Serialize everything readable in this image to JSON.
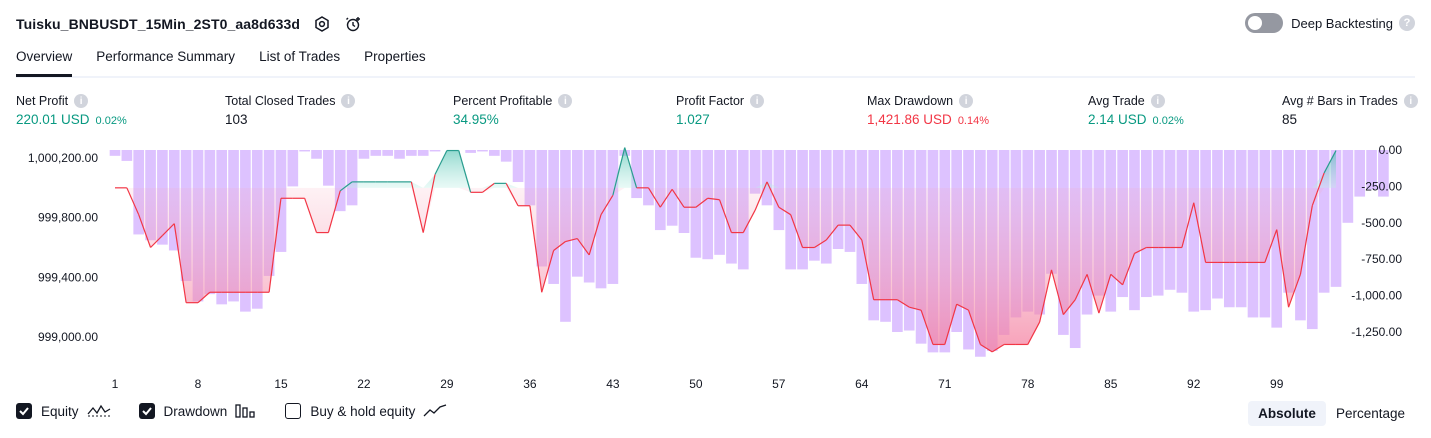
{
  "header": {
    "title": "Tuisku_BNBUSDT_15Min_2ST0_aa8d633d",
    "settings_icon": "gear-icon",
    "alert_icon": "add-alert-icon",
    "deep_backtesting_label": "Deep Backtesting",
    "deep_backtesting_on": false
  },
  "tabs": [
    {
      "label": "Overview",
      "active": true
    },
    {
      "label": "Performance Summary",
      "active": false
    },
    {
      "label": "List of Trades",
      "active": false
    },
    {
      "label": "Properties",
      "active": false
    }
  ],
  "metrics": [
    {
      "label": "Net Profit",
      "value": "220.01 USD",
      "pct": "0.02%",
      "color": "#089981"
    },
    {
      "label": "Total Closed Trades",
      "value": "103",
      "pct": "",
      "color": "#131722"
    },
    {
      "label": "Percent Profitable",
      "value": "34.95%",
      "pct": "",
      "color": "#089981"
    },
    {
      "label": "Profit Factor",
      "value": "1.027",
      "pct": "",
      "color": "#089981"
    },
    {
      "label": "Max Drawdown",
      "value": "1,421.86 USD",
      "pct": "0.14%",
      "color": "#f23645"
    },
    {
      "label": "Avg Trade",
      "value": "2.14 USD",
      "pct": "0.02%",
      "color": "#089981"
    },
    {
      "label": "Avg # Bars in Trades",
      "value": "85",
      "pct": "",
      "color": "#131722"
    }
  ],
  "chart_data": {
    "type": "line",
    "x_ticks": [
      1,
      8,
      15,
      22,
      29,
      36,
      43,
      50,
      57,
      64,
      71,
      78,
      85,
      92,
      99
    ],
    "left_axis_ticks": [
      "1,000,200.00",
      "999,800.00",
      "999,400.00",
      "999,000.00"
    ],
    "right_axis_ticks": [
      "0.00",
      "-250.00",
      "-500.00",
      "-750.00",
      "-1,000.00",
      "-1,250.00"
    ],
    "equity_baseline": 1000000,
    "equity_range": [
      998930,
      1000255
    ],
    "drawdown_range": [
      -1421.86,
      0
    ],
    "series": [
      {
        "name": "Equity",
        "values": [
          1000000,
          1000000,
          999820,
          999600,
          999680,
          999760,
          999230,
          999230,
          999300,
          999300,
          999300,
          999300,
          999300,
          999300,
          999930,
          999930,
          999930,
          999700,
          999700,
          999980,
          1000040,
          1000040,
          1000040,
          1000040,
          1000040,
          1000040,
          999700,
          1000090,
          1000250,
          1000250,
          999970,
          999970,
          1000030,
          1000030,
          999880,
          999880,
          999300,
          999580,
          999640,
          999660,
          999550,
          999820,
          999950,
          1000270,
          1000000,
          1000000,
          999870,
          999990,
          999870,
          999870,
          999930,
          999920,
          999700,
          999700,
          999850,
          1000040,
          999870,
          999820,
          999600,
          999600,
          999650,
          999750,
          999750,
          999650,
          999250,
          999250,
          999250,
          999200,
          999180,
          998950,
          998950,
          999220,
          999180,
          998950,
          998900,
          998950,
          998950,
          998950,
          999100,
          999450,
          999150,
          999250,
          999420,
          999160,
          999420,
          999350,
          999560,
          999600,
          999600,
          999600,
          999600,
          999900,
          999500,
          999500,
          999500,
          999500,
          999500,
          999500,
          999720,
          999200,
          999420,
          999880,
          1000100,
          1000250
        ]
      },
      {
        "name": "Drawdown",
        "values": [
          -40,
          -75,
          -580,
          -620,
          -650,
          -690,
          -900,
          -1040,
          -990,
          -1060,
          -1040,
          -1110,
          -1090,
          -865,
          -700,
          -250,
          -10,
          -60,
          -245,
          -420,
          -380,
          -60,
          -40,
          -40,
          -60,
          -40,
          -40,
          -10,
          0,
          0,
          -20,
          -10,
          -40,
          -80,
          -220,
          -380,
          -800,
          -920,
          -1180,
          -870,
          -910,
          -950,
          -920,
          -40,
          -330,
          -380,
          -550,
          -520,
          -570,
          -740,
          -750,
          -720,
          -780,
          -820,
          -300,
          -380,
          -550,
          -820,
          -820,
          -760,
          -780,
          -680,
          -700,
          -920,
          -1170,
          -1180,
          -1250,
          -1240,
          -1330,
          -1390,
          -1390,
          -1250,
          -1370,
          -1420,
          -1380,
          -1270,
          -1150,
          -1110,
          -1130,
          -850,
          -1270,
          -1360,
          -1130,
          -1000,
          -1110,
          -1010,
          -1100,
          -1010,
          -1000,
          -960,
          -980,
          -1110,
          -1100,
          -1020,
          -1080,
          -1080,
          -1150,
          -1150,
          -1220,
          -980,
          -1170,
          -1230,
          -980,
          -940,
          -500,
          -320,
          -270,
          -320
        ]
      }
    ]
  },
  "legend": {
    "items": [
      {
        "label": "Equity",
        "checked": true,
        "icon": "equity-line-icon"
      },
      {
        "label": "Drawdown",
        "checked": true,
        "icon": "drawdown-bars-icon"
      },
      {
        "label": "Buy & hold equity",
        "checked": false,
        "icon": "buy-hold-line-icon"
      }
    ],
    "modes": [
      {
        "label": "Absolute",
        "active": true
      },
      {
        "label": "Percentage",
        "active": false
      }
    ]
  },
  "colors": {
    "positive": "#089981",
    "negative": "#f23645",
    "drawdown_bar": "#d9bbff",
    "equity_line": "#f23645",
    "equity_fill": "#f7a4b9"
  }
}
